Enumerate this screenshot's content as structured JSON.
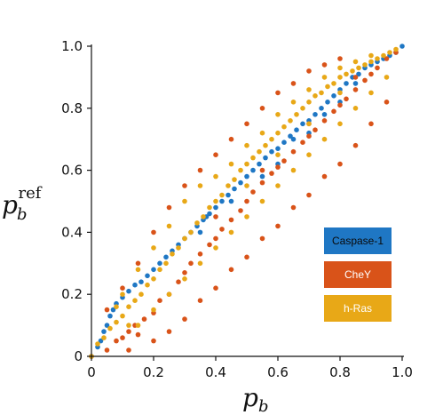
{
  "chart_data": {
    "type": "scatter",
    "xlabel": "p_b",
    "ylabel": "p_b^ref",
    "xlim": [
      0,
      1.0
    ],
    "ylim": [
      0,
      1.0
    ],
    "xticks": [
      "0",
      "0.2",
      "0.4",
      "0.6",
      "0.8",
      "1.0"
    ],
    "yticks": [
      "0",
      "0.2",
      "0.4",
      "0.6",
      "0.8",
      "1.0"
    ],
    "grid": false,
    "legend_placement": "lower-right",
    "series": [
      {
        "name": "Caspase-1",
        "color": "#1f77c4",
        "points": [
          [
            0.0,
            0.0
          ],
          [
            0.02,
            0.03
          ],
          [
            0.03,
            0.05
          ],
          [
            0.04,
            0.08
          ],
          [
            0.05,
            0.1
          ],
          [
            0.06,
            0.13
          ],
          [
            0.07,
            0.15
          ],
          [
            0.08,
            0.17
          ],
          [
            0.1,
            0.19
          ],
          [
            0.12,
            0.21
          ],
          [
            0.14,
            0.23
          ],
          [
            0.16,
            0.24
          ],
          [
            0.18,
            0.26
          ],
          [
            0.2,
            0.28
          ],
          [
            0.22,
            0.3
          ],
          [
            0.24,
            0.32
          ],
          [
            0.26,
            0.34
          ],
          [
            0.28,
            0.36
          ],
          [
            0.3,
            0.38
          ],
          [
            0.32,
            0.4
          ],
          [
            0.34,
            0.42
          ],
          [
            0.36,
            0.44
          ],
          [
            0.38,
            0.46
          ],
          [
            0.4,
            0.48
          ],
          [
            0.42,
            0.5
          ],
          [
            0.44,
            0.52
          ],
          [
            0.46,
            0.54
          ],
          [
            0.48,
            0.56
          ],
          [
            0.5,
            0.58
          ],
          [
            0.52,
            0.6
          ],
          [
            0.54,
            0.62
          ],
          [
            0.56,
            0.64
          ],
          [
            0.58,
            0.66
          ],
          [
            0.6,
            0.67
          ],
          [
            0.62,
            0.69
          ],
          [
            0.64,
            0.71
          ],
          [
            0.66,
            0.73
          ],
          [
            0.68,
            0.75
          ],
          [
            0.7,
            0.76
          ],
          [
            0.72,
            0.78
          ],
          [
            0.74,
            0.8
          ],
          [
            0.76,
            0.82
          ],
          [
            0.78,
            0.84
          ],
          [
            0.8,
            0.86
          ],
          [
            0.82,
            0.88
          ],
          [
            0.84,
            0.9
          ],
          [
            0.86,
            0.91
          ],
          [
            0.88,
            0.93
          ],
          [
            0.9,
            0.94
          ],
          [
            0.92,
            0.95
          ],
          [
            0.94,
            0.96
          ],
          [
            0.96,
            0.97
          ],
          [
            0.98,
            0.98
          ],
          [
            1.0,
            1.0
          ],
          [
            0.35,
            0.4
          ],
          [
            0.37,
            0.45
          ],
          [
            0.45,
            0.5
          ],
          [
            0.55,
            0.58
          ],
          [
            0.65,
            0.7
          ],
          [
            0.75,
            0.78
          ],
          [
            0.85,
            0.88
          ],
          [
            0.6,
            0.62
          ],
          [
            0.7,
            0.72
          ],
          [
            0.8,
            0.82
          ]
        ]
      },
      {
        "name": "CheY",
        "color": "#d95319",
        "points": [
          [
            0.0,
            0.0
          ],
          [
            0.05,
            0.02
          ],
          [
            0.08,
            0.05
          ],
          [
            0.1,
            0.06
          ],
          [
            0.12,
            0.08
          ],
          [
            0.14,
            0.1
          ],
          [
            0.15,
            0.07
          ],
          [
            0.17,
            0.12
          ],
          [
            0.2,
            0.14
          ],
          [
            0.22,
            0.18
          ],
          [
            0.25,
            0.2
          ],
          [
            0.28,
            0.24
          ],
          [
            0.3,
            0.27
          ],
          [
            0.32,
            0.3
          ],
          [
            0.35,
            0.33
          ],
          [
            0.38,
            0.36
          ],
          [
            0.4,
            0.38
          ],
          [
            0.42,
            0.41
          ],
          [
            0.45,
            0.44
          ],
          [
            0.48,
            0.47
          ],
          [
            0.5,
            0.5
          ],
          [
            0.52,
            0.53
          ],
          [
            0.55,
            0.56
          ],
          [
            0.58,
            0.59
          ],
          [
            0.6,
            0.61
          ],
          [
            0.62,
            0.63
          ],
          [
            0.65,
            0.66
          ],
          [
            0.68,
            0.69
          ],
          [
            0.7,
            0.71
          ],
          [
            0.72,
            0.73
          ],
          [
            0.75,
            0.76
          ],
          [
            0.78,
            0.79
          ],
          [
            0.8,
            0.81
          ],
          [
            0.82,
            0.83
          ],
          [
            0.85,
            0.86
          ],
          [
            0.88,
            0.89
          ],
          [
            0.9,
            0.91
          ],
          [
            0.92,
            0.93
          ],
          [
            0.95,
            0.96
          ],
          [
            0.98,
            0.98
          ],
          [
            0.15,
            0.3
          ],
          [
            0.2,
            0.4
          ],
          [
            0.25,
            0.48
          ],
          [
            0.3,
            0.55
          ],
          [
            0.35,
            0.6
          ],
          [
            0.4,
            0.65
          ],
          [
            0.45,
            0.7
          ],
          [
            0.5,
            0.75
          ],
          [
            0.55,
            0.8
          ],
          [
            0.6,
            0.85
          ],
          [
            0.65,
            0.88
          ],
          [
            0.7,
            0.92
          ],
          [
            0.75,
            0.94
          ],
          [
            0.8,
            0.96
          ],
          [
            0.2,
            0.05
          ],
          [
            0.25,
            0.08
          ],
          [
            0.3,
            0.12
          ],
          [
            0.35,
            0.18
          ],
          [
            0.4,
            0.22
          ],
          [
            0.45,
            0.28
          ],
          [
            0.5,
            0.32
          ],
          [
            0.55,
            0.38
          ],
          [
            0.6,
            0.42
          ],
          [
            0.65,
            0.48
          ],
          [
            0.7,
            0.52
          ],
          [
            0.75,
            0.58
          ],
          [
            0.8,
            0.62
          ],
          [
            0.85,
            0.68
          ],
          [
            0.9,
            0.75
          ],
          [
            0.95,
            0.82
          ],
          [
            0.1,
            0.22
          ],
          [
            0.05,
            0.15
          ],
          [
            0.12,
            0.02
          ],
          [
            0.4,
            0.45
          ],
          [
            0.55,
            0.6
          ],
          [
            0.7,
            0.75
          ],
          [
            0.85,
            0.9
          ]
        ]
      },
      {
        "name": "h-Ras",
        "color": "#e8a817",
        "points": [
          [
            0.0,
            0.0
          ],
          [
            0.02,
            0.04
          ],
          [
            0.04,
            0.06
          ],
          [
            0.06,
            0.09
          ],
          [
            0.08,
            0.11
          ],
          [
            0.1,
            0.13
          ],
          [
            0.12,
            0.16
          ],
          [
            0.14,
            0.18
          ],
          [
            0.16,
            0.2
          ],
          [
            0.18,
            0.23
          ],
          [
            0.2,
            0.25
          ],
          [
            0.22,
            0.28
          ],
          [
            0.24,
            0.3
          ],
          [
            0.26,
            0.33
          ],
          [
            0.28,
            0.35
          ],
          [
            0.3,
            0.38
          ],
          [
            0.32,
            0.4
          ],
          [
            0.34,
            0.43
          ],
          [
            0.36,
            0.45
          ],
          [
            0.38,
            0.48
          ],
          [
            0.4,
            0.5
          ],
          [
            0.42,
            0.52
          ],
          [
            0.44,
            0.55
          ],
          [
            0.46,
            0.57
          ],
          [
            0.48,
            0.6
          ],
          [
            0.5,
            0.62
          ],
          [
            0.52,
            0.64
          ],
          [
            0.54,
            0.66
          ],
          [
            0.56,
            0.68
          ],
          [
            0.58,
            0.7
          ],
          [
            0.6,
            0.72
          ],
          [
            0.62,
            0.74
          ],
          [
            0.64,
            0.76
          ],
          [
            0.66,
            0.78
          ],
          [
            0.68,
            0.8
          ],
          [
            0.7,
            0.82
          ],
          [
            0.72,
            0.84
          ],
          [
            0.74,
            0.85
          ],
          [
            0.76,
            0.87
          ],
          [
            0.78,
            0.88
          ],
          [
            0.8,
            0.9
          ],
          [
            0.82,
            0.91
          ],
          [
            0.84,
            0.92
          ],
          [
            0.86,
            0.93
          ],
          [
            0.88,
            0.94
          ],
          [
            0.9,
            0.95
          ],
          [
            0.92,
            0.96
          ],
          [
            0.94,
            0.97
          ],
          [
            0.96,
            0.98
          ],
          [
            0.98,
            0.99
          ],
          [
            0.1,
            0.2
          ],
          [
            0.15,
            0.28
          ],
          [
            0.2,
            0.35
          ],
          [
            0.25,
            0.42
          ],
          [
            0.3,
            0.5
          ],
          [
            0.35,
            0.55
          ],
          [
            0.4,
            0.58
          ],
          [
            0.45,
            0.62
          ],
          [
            0.5,
            0.68
          ],
          [
            0.55,
            0.72
          ],
          [
            0.6,
            0.78
          ],
          [
            0.65,
            0.82
          ],
          [
            0.7,
            0.86
          ],
          [
            0.75,
            0.9
          ],
          [
            0.8,
            0.93
          ],
          [
            0.85,
            0.95
          ],
          [
            0.9,
            0.97
          ],
          [
            0.15,
            0.1
          ],
          [
            0.2,
            0.15
          ],
          [
            0.25,
            0.2
          ],
          [
            0.3,
            0.25
          ],
          [
            0.35,
            0.3
          ],
          [
            0.4,
            0.35
          ],
          [
            0.45,
            0.4
          ],
          [
            0.5,
            0.45
          ],
          [
            0.55,
            0.5
          ],
          [
            0.6,
            0.55
          ],
          [
            0.65,
            0.6
          ],
          [
            0.7,
            0.65
          ],
          [
            0.75,
            0.7
          ],
          [
            0.8,
            0.75
          ],
          [
            0.85,
            0.8
          ],
          [
            0.9,
            0.85
          ],
          [
            0.95,
            0.9
          ],
          [
            0.08,
            0.16
          ],
          [
            0.12,
            0.1
          ],
          [
            0.5,
            0.55
          ],
          [
            0.6,
            0.65
          ],
          [
            0.7,
            0.75
          ],
          [
            0.8,
            0.85
          ]
        ]
      }
    ]
  }
}
